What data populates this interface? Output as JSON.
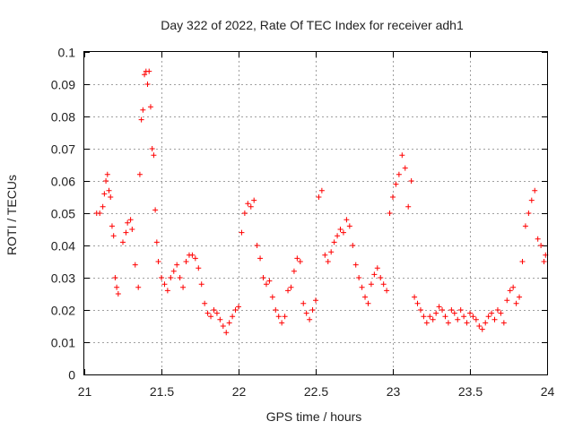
{
  "chart_data": {
    "type": "scatter",
    "title": "Day 322 of 2022, Rate Of TEC Index for receiver adh1",
    "xlabel": "GPS time / hours",
    "ylabel": "ROTI / TECUs",
    "xlim": [
      21,
      24
    ],
    "ylim": [
      0,
      0.1
    ],
    "x_ticks": [
      "21",
      "21.5",
      "22",
      "22.5",
      "23",
      "23.5",
      "24"
    ],
    "y_ticks": [
      "0",
      "0.01",
      "0.02",
      "0.03",
      "0.04",
      "0.05",
      "0.06",
      "0.07",
      "0.08",
      "0.09",
      "0.1"
    ],
    "grid": true,
    "marker": "+",
    "series_color": "#ff0000",
    "points": [
      [
        21.08,
        0.05
      ],
      [
        21.1,
        0.05
      ],
      [
        21.12,
        0.052
      ],
      [
        21.13,
        0.056
      ],
      [
        21.14,
        0.06
      ],
      [
        21.15,
        0.062
      ],
      [
        21.16,
        0.057
      ],
      [
        21.17,
        0.055
      ],
      [
        21.18,
        0.046
      ],
      [
        21.19,
        0.043
      ],
      [
        21.2,
        0.03
      ],
      [
        21.21,
        0.027
      ],
      [
        21.22,
        0.025
      ],
      [
        21.25,
        0.041
      ],
      [
        21.27,
        0.044
      ],
      [
        21.28,
        0.047
      ],
      [
        21.3,
        0.048
      ],
      [
        21.31,
        0.045
      ],
      [
        21.33,
        0.034
      ],
      [
        21.35,
        0.027
      ],
      [
        21.36,
        0.062
      ],
      [
        21.37,
        0.079
      ],
      [
        21.38,
        0.082
      ],
      [
        21.39,
        0.093
      ],
      [
        21.4,
        0.094
      ],
      [
        21.41,
        0.09
      ],
      [
        21.42,
        0.094
      ],
      [
        21.43,
        0.083
      ],
      [
        21.44,
        0.07
      ],
      [
        21.45,
        0.068
      ],
      [
        21.46,
        0.051
      ],
      [
        21.47,
        0.041
      ],
      [
        21.48,
        0.035
      ],
      [
        21.5,
        0.03
      ],
      [
        21.52,
        0.028
      ],
      [
        21.54,
        0.026
      ],
      [
        21.56,
        0.03
      ],
      [
        21.58,
        0.032
      ],
      [
        21.6,
        0.034
      ],
      [
        21.62,
        0.03
      ],
      [
        21.64,
        0.027
      ],
      [
        21.66,
        0.035
      ],
      [
        21.68,
        0.037
      ],
      [
        21.7,
        0.037
      ],
      [
        21.72,
        0.036
      ],
      [
        21.74,
        0.033
      ],
      [
        21.76,
        0.028
      ],
      [
        21.78,
        0.022
      ],
      [
        21.8,
        0.019
      ],
      [
        21.82,
        0.018
      ],
      [
        21.84,
        0.02
      ],
      [
        21.86,
        0.019
      ],
      [
        21.88,
        0.017
      ],
      [
        21.9,
        0.015
      ],
      [
        21.92,
        0.013
      ],
      [
        21.94,
        0.016
      ],
      [
        21.96,
        0.018
      ],
      [
        21.98,
        0.02
      ],
      [
        22.0,
        0.021
      ],
      [
        22.02,
        0.044
      ],
      [
        22.04,
        0.05
      ],
      [
        22.06,
        0.053
      ],
      [
        22.08,
        0.052
      ],
      [
        22.1,
        0.054
      ],
      [
        22.12,
        0.04
      ],
      [
        22.14,
        0.036
      ],
      [
        22.16,
        0.03
      ],
      [
        22.18,
        0.028
      ],
      [
        22.2,
        0.029
      ],
      [
        22.22,
        0.024
      ],
      [
        22.24,
        0.02
      ],
      [
        22.26,
        0.018
      ],
      [
        22.28,
        0.016
      ],
      [
        22.3,
        0.018
      ],
      [
        22.32,
        0.026
      ],
      [
        22.34,
        0.027
      ],
      [
        22.36,
        0.032
      ],
      [
        22.38,
        0.036
      ],
      [
        22.4,
        0.035
      ],
      [
        22.42,
        0.022
      ],
      [
        22.44,
        0.019
      ],
      [
        22.46,
        0.017
      ],
      [
        22.48,
        0.02
      ],
      [
        22.5,
        0.023
      ],
      [
        22.52,
        0.055
      ],
      [
        22.54,
        0.057
      ],
      [
        22.56,
        0.037
      ],
      [
        22.58,
        0.035
      ],
      [
        22.6,
        0.038
      ],
      [
        22.62,
        0.041
      ],
      [
        22.64,
        0.043
      ],
      [
        22.66,
        0.045
      ],
      [
        22.68,
        0.044
      ],
      [
        22.7,
        0.048
      ],
      [
        22.72,
        0.046
      ],
      [
        22.74,
        0.04
      ],
      [
        22.76,
        0.034
      ],
      [
        22.78,
        0.03
      ],
      [
        22.8,
        0.027
      ],
      [
        22.82,
        0.024
      ],
      [
        22.84,
        0.022
      ],
      [
        22.86,
        0.028
      ],
      [
        22.88,
        0.031
      ],
      [
        22.9,
        0.033
      ],
      [
        22.92,
        0.03
      ],
      [
        22.94,
        0.028
      ],
      [
        22.96,
        0.026
      ],
      [
        22.98,
        0.05
      ],
      [
        23.0,
        0.055
      ],
      [
        23.02,
        0.059
      ],
      [
        23.04,
        0.062
      ],
      [
        23.06,
        0.068
      ],
      [
        23.08,
        0.064
      ],
      [
        23.1,
        0.052
      ],
      [
        23.12,
        0.06
      ],
      [
        23.14,
        0.024
      ],
      [
        23.16,
        0.022
      ],
      [
        23.18,
        0.02
      ],
      [
        23.2,
        0.018
      ],
      [
        23.22,
        0.016
      ],
      [
        23.24,
        0.018
      ],
      [
        23.26,
        0.017
      ],
      [
        23.28,
        0.019
      ],
      [
        23.3,
        0.021
      ],
      [
        23.32,
        0.02
      ],
      [
        23.34,
        0.018
      ],
      [
        23.36,
        0.016
      ],
      [
        23.38,
        0.02
      ],
      [
        23.4,
        0.019
      ],
      [
        23.42,
        0.017
      ],
      [
        23.44,
        0.02
      ],
      [
        23.46,
        0.018
      ],
      [
        23.48,
        0.016
      ],
      [
        23.5,
        0.019
      ],
      [
        23.52,
        0.018
      ],
      [
        23.54,
        0.017
      ],
      [
        23.56,
        0.015
      ],
      [
        23.58,
        0.014
      ],
      [
        23.6,
        0.016
      ],
      [
        23.62,
        0.018
      ],
      [
        23.64,
        0.019
      ],
      [
        23.66,
        0.017
      ],
      [
        23.68,
        0.02
      ],
      [
        23.7,
        0.019
      ],
      [
        23.72,
        0.016
      ],
      [
        23.74,
        0.023
      ],
      [
        23.76,
        0.026
      ],
      [
        23.78,
        0.027
      ],
      [
        23.8,
        0.022
      ],
      [
        23.82,
        0.024
      ],
      [
        23.84,
        0.035
      ],
      [
        23.86,
        0.046
      ],
      [
        23.88,
        0.05
      ],
      [
        23.9,
        0.054
      ],
      [
        23.92,
        0.057
      ],
      [
        23.94,
        0.042
      ],
      [
        23.96,
        0.04
      ],
      [
        23.98,
        0.035
      ],
      [
        23.99,
        0.037
      ]
    ]
  }
}
